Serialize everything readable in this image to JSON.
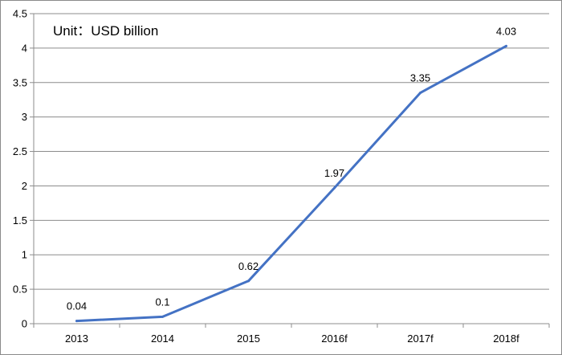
{
  "chart_data": {
    "type": "line",
    "categories": [
      "2013",
      "2014",
      "2015",
      "2016f",
      "2017f",
      "2018f"
    ],
    "series": [
      {
        "values": [
          0.04,
          0.1,
          0.62,
          1.97,
          3.35,
          4.03
        ],
        "color": "#4472C4"
      }
    ],
    "data_labels": [
      "0.04",
      "0.1",
      "0.62",
      "1.97",
      "3.35",
      "4.03"
    ],
    "unit_label": "Unit：USD billion",
    "yticks": [
      "0",
      "0.5",
      "1",
      "1.5",
      "2",
      "2.5",
      "3",
      "3.5",
      "4",
      "4.5"
    ],
    "ylim": [
      0,
      4.5
    ],
    "grid": true,
    "legend": "none",
    "title": "",
    "xlabel": "",
    "ylabel": ""
  }
}
